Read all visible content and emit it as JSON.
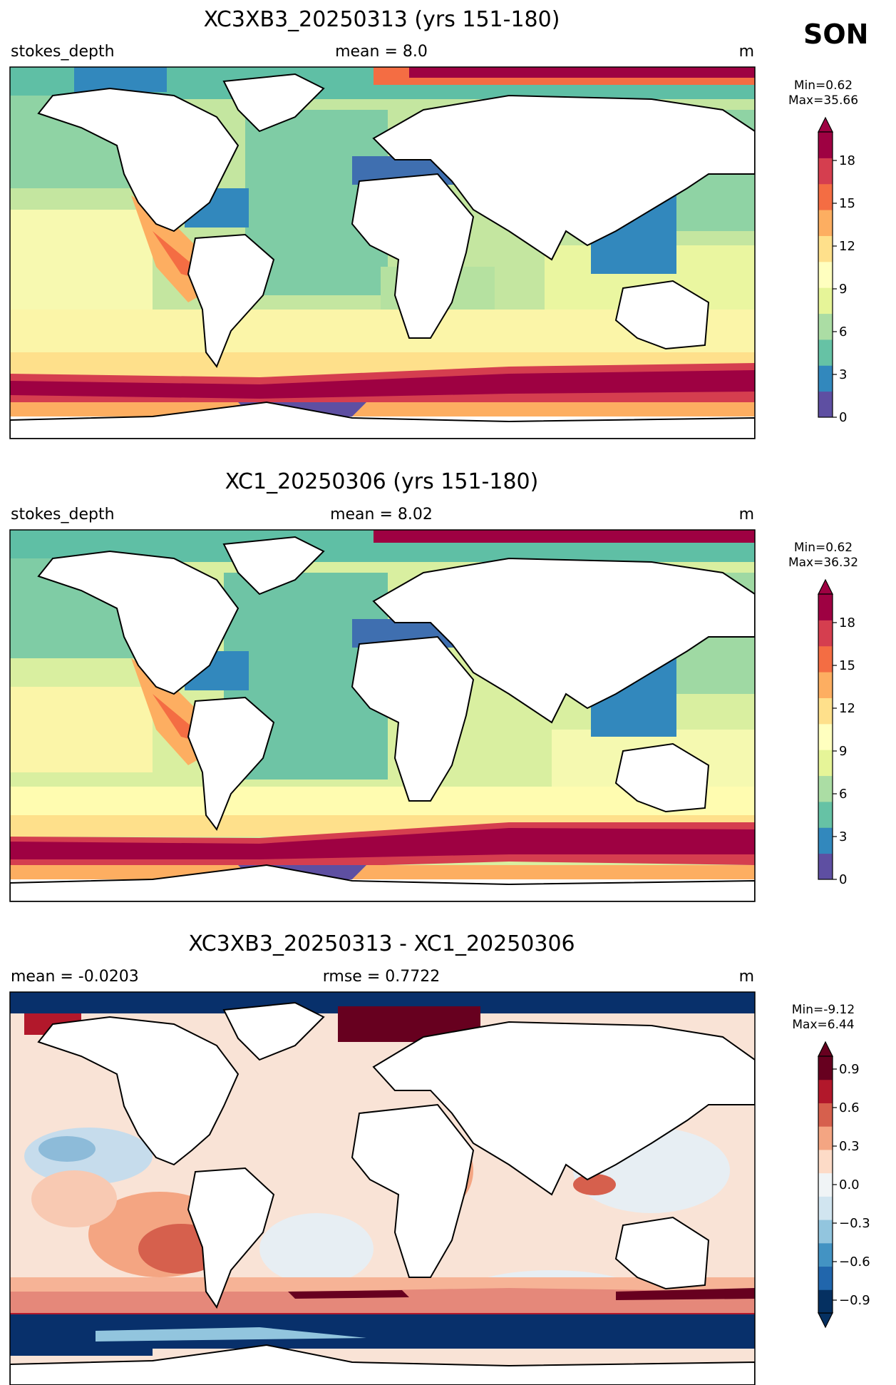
{
  "figure": {
    "season": "SON"
  },
  "panels": [
    {
      "title": "XC3XB3_20250313 (yrs 151-180)",
      "left_label": "stokes_depth",
      "center_label": "mean = 8.0",
      "units": "m",
      "min_label": "Min=0.62",
      "max_label": "Max=35.66",
      "colorbar": {
        "ticks": [
          "0",
          "3",
          "6",
          "9",
          "12",
          "15",
          "18"
        ],
        "range": [
          0,
          20
        ],
        "extend": "max"
      }
    },
    {
      "title": "XC1_20250306 (yrs 151-180)",
      "left_label": "stokes_depth",
      "center_label": "mean = 8.02",
      "units": "m",
      "min_label": "Min=0.62",
      "max_label": "Max=36.32",
      "colorbar": {
        "ticks": [
          "0",
          "3",
          "6",
          "9",
          "12",
          "15",
          "18"
        ],
        "range": [
          0,
          20
        ],
        "extend": "max"
      }
    },
    {
      "title": "XC3XB3_20250313 - XC1_20250306",
      "left_label": "mean = -0.0203",
      "center_label": "rmse = 0.7722",
      "units": "m",
      "min_label": "Min=-9.12",
      "max_label": "Max=6.44",
      "colorbar": {
        "ticks": [
          "0.9",
          "0.6",
          "0.3",
          "0.0",
          "−0.3",
          "−0.6",
          "−0.9"
        ],
        "range": [
          -1,
          1
        ],
        "extend": "both"
      }
    }
  ],
  "colors": {
    "spectral": [
      "#5e4fa2",
      "#3288bd",
      "#66c2a5",
      "#abdda4",
      "#e6f598",
      "#ffffbf",
      "#fee08b",
      "#fdae61",
      "#f46d43",
      "#d53e4f",
      "#9e0142"
    ],
    "rdbu": [
      "#053061",
      "#2166ac",
      "#4393c3",
      "#92c5de",
      "#d1e5f0",
      "#f0f4f6",
      "#fddbc7",
      "#f4a582",
      "#d6604d",
      "#b2182b",
      "#67001f"
    ],
    "land": "#ffffff",
    "coast": "#000000"
  }
}
